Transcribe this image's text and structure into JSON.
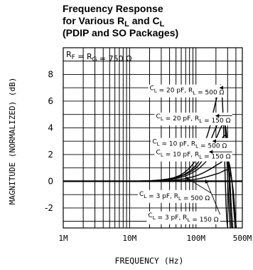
{
  "chart_data": {
    "type": "line",
    "title": {
      "line1": "Frequency Response",
      "line2a": "for Various R",
      "line2b": "L",
      "line2c": " and C",
      "line2d": "L",
      "line3": "(PDIP and SO Packages)"
    },
    "xlabel": "FREQUENCY (Hz)",
    "ylabel": "MAGNITUDE (NORMALIZED) (dB)",
    "x_scale": "log",
    "xlim": [
      1000000,
      500000000
    ],
    "ylim": [
      -3.5,
      10
    ],
    "x_ticks": [
      {
        "value": 1000000,
        "label": "1M"
      },
      {
        "value": 10000000,
        "label": "10M"
      },
      {
        "value": 100000000,
        "label": "100M"
      },
      {
        "value": 500000000,
        "label": "500M"
      }
    ],
    "y_ticks": [
      {
        "value": 8,
        "label": "8"
      },
      {
        "value": 6,
        "label": "6"
      },
      {
        "value": 4,
        "label": "4"
      },
      {
        "value": 2,
        "label": "2"
      },
      {
        "value": 0,
        "label": "0"
      },
      {
        "value": -2,
        "label": "-2"
      }
    ],
    "grid": true,
    "condition_label": "R_F = R_G = 750 Ω",
    "series": [
      {
        "name": "C_L = 20 pF, R_L = 500 Ω",
        "x": [
          1000000,
          10000000,
          30000000,
          60000000,
          100000000,
          150000000,
          200000000,
          240000000,
          265000000,
          285000000,
          300000000
        ],
        "y": [
          0,
          0,
          0.1,
          0.5,
          1.6,
          3.5,
          6.0,
          7.1,
          3.0,
          -2.0,
          -3.5
        ]
      },
      {
        "name": "C_L = 20 pF, R_L = 150 Ω",
        "x": [
          1000000,
          10000000,
          30000000,
          60000000,
          100000000,
          150000000,
          200000000,
          260000000,
          290000000,
          310000000,
          330000000
        ],
        "y": [
          0,
          0,
          0.1,
          0.4,
          1.2,
          2.6,
          4.0,
          5.0,
          2.0,
          -1.5,
          -3.5
        ]
      },
      {
        "name": "C_L = 10 pF, R_L = 500 Ω",
        "x": [
          1000000,
          10000000,
          30000000,
          60000000,
          100000000,
          150000000,
          200000000,
          270000000,
          305000000,
          325000000,
          345000000
        ],
        "y": [
          0,
          0,
          0.1,
          0.4,
          1.0,
          2.1,
          3.2,
          4.3,
          1.8,
          -1.5,
          -3.5
        ]
      },
      {
        "name": "C_L = 10 pF, R_L = 150 Ω",
        "x": [
          1000000,
          10000000,
          30000000,
          60000000,
          100000000,
          150000000,
          200000000,
          280000000,
          315000000,
          340000000,
          360000000
        ],
        "y": [
          0,
          0,
          0.05,
          0.3,
          0.8,
          1.6,
          2.4,
          3.4,
          1.2,
          -1.8,
          -3.5
        ]
      },
      {
        "name": "C_L = 3 pF, R_L = 500 Ω",
        "x": [
          1000000,
          10000000,
          30000000,
          60000000,
          100000000,
          150000000,
          220000000,
          300000000,
          345000000,
          370000000,
          390000000
        ],
        "y": [
          0,
          0,
          0,
          0.15,
          0.4,
          0.8,
          1.3,
          1.6,
          0.2,
          -2.0,
          -3.5
        ]
      },
      {
        "name": "C_L = 3 pF, R_L = 150 Ω",
        "x": [
          1000000,
          10000000,
          30000000,
          60000000,
          100000000,
          150000000,
          220000000,
          310000000,
          360000000,
          385000000,
          405000000
        ],
        "y": [
          0,
          0,
          0,
          0.05,
          0.15,
          0.35,
          0.6,
          0.8,
          -0.5,
          -2.2,
          -3.5
        ]
      }
    ],
    "annotations": [
      {
        "series": 0,
        "label": "C_L = 20 pF, R_L = 500 Ω",
        "text_x": 20000000,
        "text_y": 7.0,
        "arrow_to": [
          230000000,
          7.0
        ]
      },
      {
        "series": 1,
        "label": "C_L = 20 pF, R_L = 150 Ω",
        "text_x": 25000000,
        "text_y": 4.9,
        "arrow_to": [
          200000000,
          4.9
        ]
      },
      {
        "series": 2,
        "label": "C_L = 10 pF, R_L = 500 Ω",
        "text_x": 22000000,
        "text_y": 3.0,
        "arrow_to": [
          180000000,
          3.0
        ]
      },
      {
        "series": 3,
        "label": "C_L = 10 pF, R_L = 150 Ω",
        "text_x": 25000000,
        "text_y": 2.2,
        "arrow_to": [
          160000000,
          2.2
        ]
      },
      {
        "series": 4,
        "label": "C_L = 3 pF, R_L = 500 Ω",
        "text_x": 14000000,
        "text_y": -0.9,
        "arrow_to": [
          70000000,
          0.3
        ]
      },
      {
        "series": 5,
        "label": "C_L = 3 pF, R_L = 150 Ω",
        "text_x": 19000000,
        "text_y": -2.5,
        "arrow_to": [
          140000000,
          0.1
        ]
      }
    ]
  }
}
